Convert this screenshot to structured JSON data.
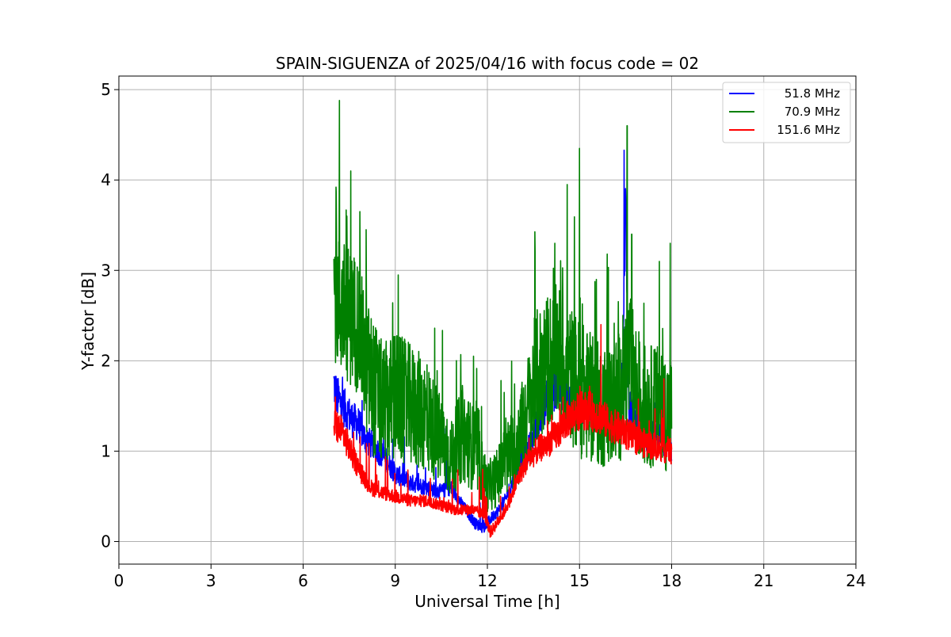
{
  "chart_data": {
    "type": "line",
    "title": "SPAIN-SIGUENZA of 2025/04/16 with focus code = 02",
    "xlabel": "Universal Time [h]",
    "ylabel": "Y-factor [dB]",
    "xlim": [
      0,
      24
    ],
    "ylim": [
      -0.25,
      5.15
    ],
    "xticks": [
      0,
      3,
      6,
      9,
      12,
      15,
      18,
      21,
      24
    ],
    "yticks": [
      0,
      1,
      2,
      3,
      4,
      5
    ],
    "grid": true,
    "legend_position": "top-right",
    "series": [
      {
        "name": "51.8 MHz",
        "color": "#0000ff",
        "x": [
          7.0,
          7.1,
          7.3,
          7.6,
          7.8,
          8.0,
          8.3,
          8.6,
          9.0,
          9.5,
          10.0,
          10.5,
          10.8,
          11.2,
          11.6,
          11.9,
          12.1,
          12.5,
          13.0,
          13.3,
          13.5,
          13.7,
          14.0,
          14.3,
          14.6,
          15.0,
          15.4,
          15.8,
          16.2,
          16.4,
          16.5,
          16.6,
          17.0,
          17.5,
          18.0
        ],
        "y": [
          1.75,
          1.6,
          1.5,
          1.35,
          1.3,
          1.15,
          1.05,
          0.95,
          0.75,
          0.65,
          0.6,
          0.55,
          0.6,
          0.4,
          0.2,
          0.15,
          0.25,
          0.4,
          0.8,
          1.0,
          1.15,
          1.4,
          1.6,
          1.75,
          1.6,
          1.5,
          1.45,
          1.35,
          1.3,
          1.6,
          3.7,
          1.5,
          1.2,
          1.15,
          1.05
        ],
        "spikes": [
          [
            16.45,
            4.33
          ],
          [
            10.65,
            1.25
          ],
          [
            16.55,
            2.75
          ]
        ]
      },
      {
        "name": "70.9 MHz",
        "color": "#008000",
        "x": [
          7.0,
          7.2,
          7.5,
          7.8,
          8.0,
          8.3,
          8.6,
          9.0,
          9.5,
          10.0,
          10.5,
          10.8,
          11.2,
          11.6,
          12.0,
          12.3,
          12.6,
          13.0,
          13.3,
          13.6,
          14.0,
          14.3,
          14.6,
          15.0,
          15.3,
          15.7,
          16.0,
          16.3,
          16.6,
          17.0,
          17.5,
          18.0
        ],
        "y": [
          2.8,
          2.6,
          2.5,
          2.4,
          2.0,
          1.7,
          1.5,
          1.6,
          1.5,
          1.4,
          1.1,
          0.9,
          1.2,
          1.0,
          0.6,
          0.7,
          0.9,
          1.1,
          1.4,
          1.8,
          2.0,
          2.1,
          1.9,
          1.7,
          1.6,
          1.5,
          1.5,
          1.6,
          2.0,
          1.5,
          1.5,
          1.4
        ],
        "spikes": [
          [
            7.08,
            3.85
          ],
          [
            7.18,
            4.88
          ],
          [
            7.42,
            3.6
          ],
          [
            7.55,
            4.1
          ],
          [
            7.85,
            3.65
          ],
          [
            8.05,
            3.45
          ],
          [
            9.1,
            2.95
          ],
          [
            11.55,
            2.05
          ],
          [
            12.55,
            1.65
          ],
          [
            13.55,
            3.2
          ],
          [
            14.2,
            3.3
          ],
          [
            14.6,
            3.95
          ],
          [
            15.0,
            4.35
          ],
          [
            15.55,
            2.9
          ],
          [
            16.55,
            4.6
          ],
          [
            16.7,
            3.4
          ],
          [
            17.6,
            3.1
          ],
          [
            17.95,
            3.3
          ]
        ]
      },
      {
        "name": "151.6 MHz",
        "color": "#ff0000",
        "x": [
          7.0,
          7.3,
          7.6,
          7.9,
          8.2,
          8.5,
          9.0,
          9.5,
          10.0,
          10.5,
          11.0,
          11.5,
          11.9,
          12.1,
          12.5,
          12.8,
          13.0,
          13.3,
          13.6,
          14.0,
          14.3,
          14.6,
          15.0,
          15.3,
          15.6,
          16.0,
          16.5,
          17.0,
          17.5,
          18.0
        ],
        "y": [
          1.3,
          1.2,
          0.95,
          0.75,
          0.6,
          0.55,
          0.5,
          0.45,
          0.45,
          0.4,
          0.35,
          0.35,
          0.3,
          0.1,
          0.3,
          0.5,
          0.7,
          0.9,
          1.0,
          1.1,
          1.2,
          1.35,
          1.45,
          1.45,
          1.4,
          1.3,
          1.2,
          1.1,
          1.05,
          1.0
        ],
        "spikes": [
          [
            7.05,
            1.6
          ],
          [
            15.7,
            2.4
          ],
          [
            17.75,
            1.8
          ],
          [
            11.85,
            0.8
          ]
        ]
      }
    ]
  }
}
